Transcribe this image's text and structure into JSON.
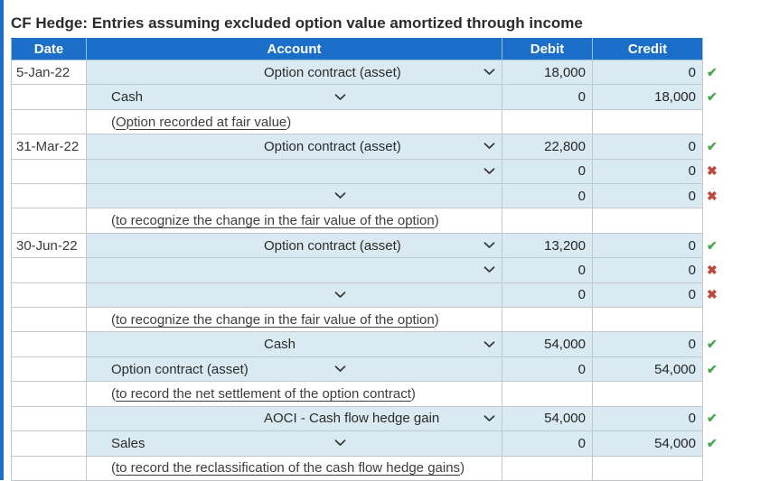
{
  "page": {
    "title": "CF Hedge: Entries assuming excluded option value amortized through income"
  },
  "colors": {
    "header_blue": "#1b6fc8",
    "left_strip_blue": "#1b6fc8",
    "cell_blue": "#d9eaf2",
    "border_gray": "#c3c8cc",
    "check_green": "#4aa552",
    "x_red": "#c0473f"
  },
  "icons": {
    "check": "✔",
    "cross": "✖",
    "chevron": "chevron-down"
  },
  "table": {
    "headers": [
      "Date",
      "Account",
      "Debit",
      "Credit"
    ],
    "punctuation": {
      "open": "(",
      "close": ")"
    },
    "rows": [
      {
        "type": "entry",
        "date": "5-Jan-22",
        "account": "Option contract (asset)",
        "align": "debit",
        "debit": "18,000",
        "credit": "0",
        "status": "correct"
      },
      {
        "type": "entry",
        "date": "",
        "account": "Cash",
        "align": "credit",
        "debit": "0",
        "credit": "18,000",
        "status": "correct"
      },
      {
        "type": "note",
        "date": "",
        "note": "Option recorded at fair value"
      },
      {
        "type": "entry",
        "date": "31-Mar-22",
        "account": "Option contract (asset)",
        "align": "debit",
        "debit": "22,800",
        "credit": "0",
        "status": "correct"
      },
      {
        "type": "entry",
        "date": "",
        "account": "",
        "align": "debit",
        "debit": "0",
        "credit": "0",
        "status": "incorrect"
      },
      {
        "type": "entry",
        "date": "",
        "account": "",
        "align": "credit",
        "debit": "0",
        "credit": "0",
        "status": "incorrect"
      },
      {
        "type": "note",
        "date": "",
        "note": "to recognize the change in the fair value of the option"
      },
      {
        "type": "entry",
        "date": "30-Jun-22",
        "account": "Option contract (asset)",
        "align": "debit",
        "debit": "13,200",
        "credit": "0",
        "status": "correct"
      },
      {
        "type": "entry",
        "date": "",
        "account": "",
        "align": "debit",
        "debit": "0",
        "credit": "0",
        "status": "incorrect"
      },
      {
        "type": "entry",
        "date": "",
        "account": "",
        "align": "credit",
        "debit": "0",
        "credit": "0",
        "status": "incorrect"
      },
      {
        "type": "note",
        "date": "",
        "note": "to recognize the change in the fair value of the option"
      },
      {
        "type": "entry",
        "date": "",
        "account": "Cash",
        "align": "debit",
        "debit": "54,000",
        "credit": "0",
        "status": "correct"
      },
      {
        "type": "entry",
        "date": "",
        "account": "Option contract (asset)",
        "align": "credit",
        "debit": "0",
        "credit": "54,000",
        "status": "correct"
      },
      {
        "type": "note",
        "date": "",
        "note": "to record the net settlement of the option contract"
      },
      {
        "type": "entry",
        "date": "",
        "account": "AOCI - Cash flow hedge gain",
        "align": "debit",
        "debit": "54,000",
        "credit": "0",
        "status": "correct"
      },
      {
        "type": "entry",
        "date": "",
        "account": "Sales",
        "align": "credit",
        "debit": "0",
        "credit": "54,000",
        "status": "correct"
      },
      {
        "type": "note",
        "date": "",
        "note": "to record the reclassification of the cash flow hedge gains"
      }
    ]
  }
}
